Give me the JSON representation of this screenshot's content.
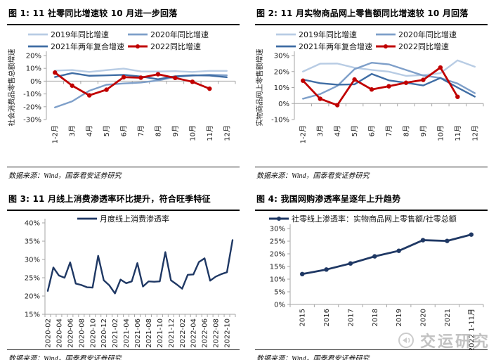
{
  "panels": [
    {
      "title": "图 1: 11 社零同比增速较 10 月进一步回落",
      "source": "数据来源：Wind，国泰君安证券研究"
    },
    {
      "title": "图 2: 11 月实物商品网上零售额同比增速较 10 月回落",
      "source": "数据来源：Wind，国泰君安证券研究"
    },
    {
      "title": "图 3: 11 月线上消费渗透率环比提升，符合旺季特征",
      "source": "数据来源：Wind，国泰君安证券研究"
    },
    {
      "title": "图 4: 我国网购渗透率呈逐年上升趋势",
      "source": "数据来源：Wind，国泰君安证券研究"
    }
  ],
  "watermark": {
    "text": "交运研究",
    "icon": "megaphone-icon",
    "color": "#c2c2c2"
  },
  "colors": {
    "blue_2019": "#b8cce4",
    "blue_2020": "#7e9fc9",
    "blue_2021": "#3f6da4",
    "red_2022": "#c00000",
    "navy": "#1f3864",
    "axis": "#a6a6a6"
  },
  "chart_data": [
    {
      "type": "line",
      "title": "图 1: 11 社零同比增速较 10 月进一步回落",
      "ylabel": "社会消费品零售总额增速",
      "unit": "%",
      "categories": [
        "1-2月",
        "3月",
        "4月",
        "5月",
        "6月",
        "7月",
        "8月",
        "9月",
        "10月",
        "11月",
        "12月"
      ],
      "ylim": [
        -30,
        20
      ],
      "yticks": [
        20,
        10,
        0,
        -10,
        -20,
        -30
      ],
      "ytick_step": 10,
      "cat_axis_at": 0,
      "grid": false,
      "legend_position": "top",
      "series": [
        {
          "name": "2019年同比增速",
          "color": "#b8cce4",
          "width": 2.4,
          "values": [
            8.2,
            8.7,
            7.2,
            8.6,
            9.8,
            7.6,
            7.5,
            7.8,
            7.2,
            8.0,
            8.0
          ]
        },
        {
          "name": "2020年同比增速",
          "color": "#7e9fc9",
          "width": 2.4,
          "values": [
            -20.5,
            -15.8,
            -7.5,
            -2.8,
            -1.8,
            -1.1,
            0.5,
            3.3,
            4.3,
            5.0,
            4.6
          ]
        },
        {
          "name": "2021年两年复合增速",
          "color": "#3f6da4",
          "width": 2.4,
          "values": [
            3.2,
            6.3,
            4.2,
            4.5,
            4.9,
            3.6,
            1.5,
            3.8,
            4.6,
            4.4,
            3.1
          ]
        },
        {
          "name": "2022同比增速",
          "color": "#c00000",
          "width": 2.8,
          "marker": "circle",
          "values": [
            6.7,
            -3.5,
            -11.1,
            -6.7,
            3.1,
            2.7,
            5.4,
            2.5,
            -0.5,
            -5.9,
            null
          ]
        }
      ]
    },
    {
      "type": "line",
      "title": "图 2: 11 月实物商品网上零售额同比增速较 10 月回落",
      "ylabel": "实物商品网上零售额增速",
      "unit": "%",
      "categories": [
        "1-2月",
        "3月",
        "4月",
        "5月",
        "6月",
        "7月",
        "8月",
        "9月",
        "10月",
        "11月",
        "12月"
      ],
      "ylim": [
        -10,
        30
      ],
      "yticks": [
        30,
        20,
        10,
        0,
        -10
      ],
      "ytick_step": 10,
      "cat_axis_at": 0,
      "grid": false,
      "legend_position": "top",
      "series": [
        {
          "name": "2019年同比增速",
          "color": "#b8cce4",
          "width": 2.4,
          "values": [
            20.0,
            24.9,
            25.0,
            22.4,
            21.0,
            19.9,
            17.3,
            17.8,
            19.0,
            27.0,
            23.0
          ]
        },
        {
          "name": "2020年同比增速",
          "color": "#7e9fc9",
          "width": 2.4,
          "values": [
            3.0,
            5.9,
            11.0,
            21.5,
            25.5,
            24.5,
            21.0,
            17.5,
            16.0,
            12.5,
            6.5
          ]
        },
        {
          "name": "2021年两年复合增速",
          "color": "#3f6da4",
          "width": 2.4,
          "values": [
            15.0,
            12.7,
            11.8,
            12.0,
            18.5,
            14.5,
            13.0,
            11.3,
            16.0,
            10.0,
            4.3
          ]
        },
        {
          "name": "2022同比增速",
          "color": "#c00000",
          "width": 2.8,
          "marker": "circle",
          "values": [
            14.3,
            3.0,
            -1.0,
            15.0,
            8.8,
            10.8,
            13.0,
            14.8,
            22.5,
            4.2,
            null
          ]
        }
      ]
    },
    {
      "type": "line",
      "title": "图 3: 11 月线上消费渗透率环比提升，符合旺季特征",
      "ylabel": "",
      "unit": "%",
      "categories": [
        "2020-02",
        "2020-03",
        "2020-04",
        "2020-05",
        "2020-06",
        "2020-07",
        "2020-08",
        "2020-09",
        "2020-10",
        "2020-11",
        "2020-12",
        "2021-01",
        "2021-02",
        "2021-03",
        "2021-04",
        "2021-05",
        "2021-06",
        "2021-07",
        "2021-08",
        "2021-09",
        "2021-10",
        "2021-11",
        "2021-12",
        "2022-01",
        "2022-02",
        "2022-03",
        "2022-04",
        "2022-05",
        "2022-06",
        "2022-07",
        "2022-08",
        "2022-09",
        "2022-10",
        "2022-11"
      ],
      "label_every": 2,
      "ylim": [
        15,
        40
      ],
      "yticks": [
        40,
        35,
        30,
        25,
        20,
        15
      ],
      "ytick_step": 5,
      "cat_axis_at": 15,
      "grid": false,
      "legend_position": "top",
      "series": [
        {
          "name": "月度线上消费渗透率",
          "color": "#1f3864",
          "width": 2.4,
          "values": [
            21.4,
            27.8,
            25.6,
            25.0,
            29.2,
            23.4,
            23.0,
            22.4,
            22.3,
            31.0,
            24.3,
            22.9,
            20.7,
            24.5,
            23.5,
            24.0,
            29.0,
            22.6,
            24.0,
            23.9,
            24.0,
            32.0,
            24.3,
            23.2,
            22.0,
            25.8,
            25.9,
            29.3,
            30.3,
            24.2,
            25.3,
            26.0,
            26.5,
            35.3
          ]
        }
      ]
    },
    {
      "type": "line",
      "title": "图 4: 我国网购渗透率呈逐年上升趋势",
      "ylabel": "",
      "unit": "%",
      "categories": [
        "2015",
        "2016",
        "2017",
        "2018",
        "2019",
        "2020",
        "2021",
        "2022 1-11月"
      ],
      "ylim": [
        0,
        30
      ],
      "yticks": [
        30,
        25,
        20,
        15,
        10,
        5,
        0
      ],
      "ytick_step": 5,
      "cat_axis_at": 0,
      "grid": false,
      "legend_position": "top",
      "series": [
        {
          "name": "社零线上渗透率：实物商品网上零售额/社零总额",
          "color": "#1f3864",
          "width": 2.8,
          "marker": "circle",
          "values": [
            12.0,
            13.8,
            16.2,
            19.0,
            21.2,
            25.4,
            25.1,
            27.6
          ]
        }
      ]
    }
  ]
}
